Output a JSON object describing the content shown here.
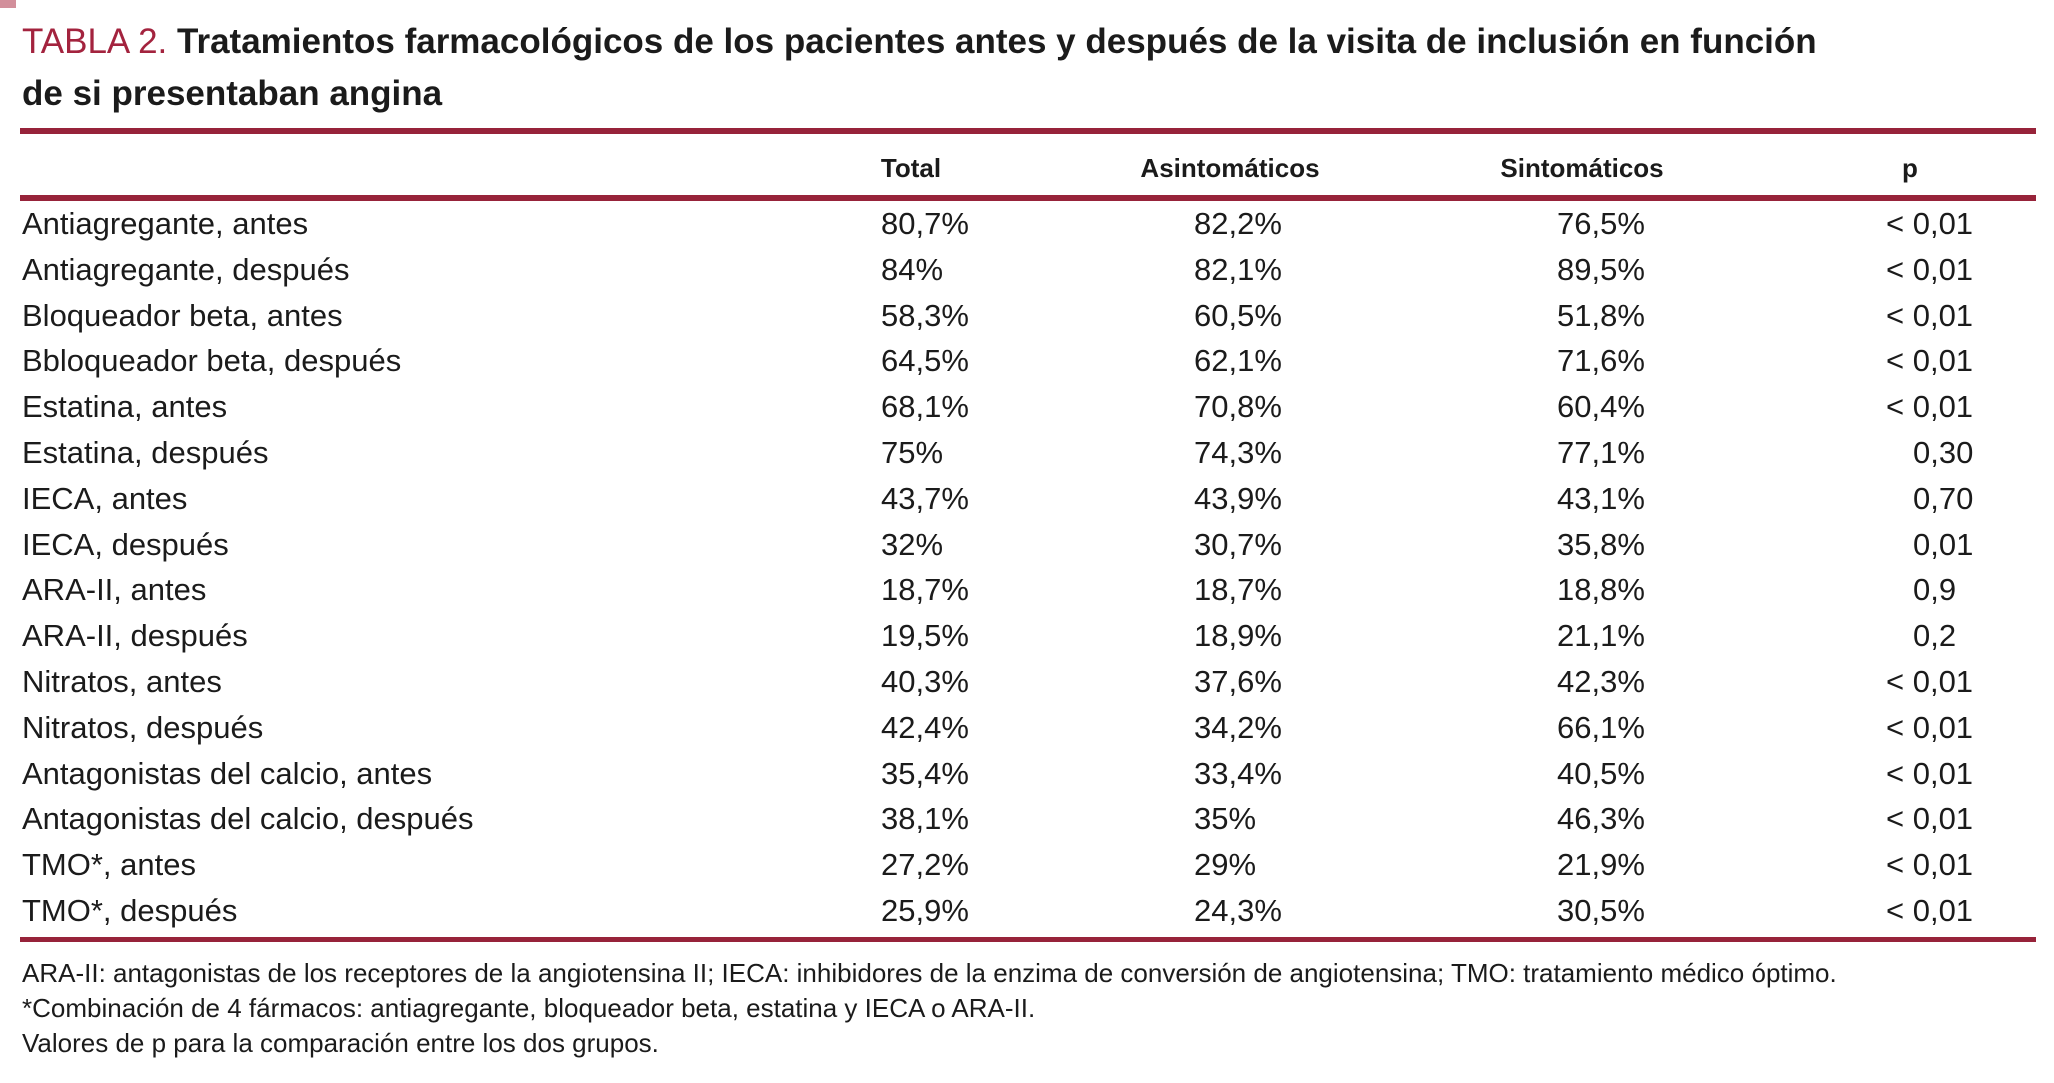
{
  "colors": {
    "accent_rule": "#97233a",
    "title_label": "#a3233e",
    "text": "#1b1b1b",
    "background": "#ffffff"
  },
  "title": {
    "label": "TABLA 2.",
    "line1": "Tratamientos farmacológicos de los pacientes antes y después de la visita de inclusión en función",
    "line2": "de si presentaban angina"
  },
  "table": {
    "headers": [
      "Total",
      "Asintomáticos",
      "Sintomáticos",
      "p"
    ],
    "rows": [
      [
        "Antiagregante, antes",
        "80,7%",
        "82,2%",
        "76,5%",
        "< 0,01"
      ],
      [
        "Antiagregante, después",
        "84%",
        "82,1%",
        "89,5%",
        "< 0,01"
      ],
      [
        "Bloqueador beta, antes",
        "58,3%",
        "60,5%",
        "51,8%",
        "< 0,01"
      ],
      [
        "Bbloqueador beta, después",
        "64,5%",
        "62,1%",
        "71,6%",
        "< 0,01"
      ],
      [
        "Estatina, antes",
        "68,1%",
        "70,8%",
        "60,4%",
        "< 0,01"
      ],
      [
        "Estatina, después",
        "75%",
        "74,3%",
        "77,1%",
        "0,30"
      ],
      [
        "IECA, antes",
        "43,7%",
        "43,9%",
        "43,1%",
        "0,70"
      ],
      [
        "IECA, después",
        "32%",
        "30,7%",
        "35,8%",
        "0,01"
      ],
      [
        "ARA-II, antes",
        "18,7%",
        "18,7%",
        "18,8%",
        "0,9"
      ],
      [
        "ARA-II, después",
        "19,5%",
        "18,9%",
        "21,1%",
        "0,2"
      ],
      [
        "Nitratos, antes",
        "40,3%",
        "37,6%",
        "42,3%",
        "< 0,01"
      ],
      [
        "Nitratos, después",
        "42,4%",
        "34,2%",
        "66,1%",
        "< 0,01"
      ],
      [
        "Antagonistas del calcio, antes",
        "35,4%",
        "33,4%",
        "40,5%",
        "< 0,01"
      ],
      [
        "Antagonistas del calcio, después",
        "38,1%",
        "35%",
        "46,3%",
        "< 0,01"
      ],
      [
        "TMO*, antes",
        "27,2%",
        "29%",
        "21,9%",
        "< 0,01"
      ],
      [
        "TMO*, después",
        "25,9%",
        "24,3%",
        "30,5%",
        "< 0,01"
      ]
    ]
  },
  "footnotes": [
    "ARA-II: antagonistas de los receptores de la angiotensina II; IECA: inhibidores de la enzima de conversión de angiotensina; TMO: tratamiento médico óptimo.",
    "*Combinación de 4 fármacos: antiagregante, bloqueador beta, estatina y IECA o ARA-II.",
    "Valores de p para la comparación entre los dos grupos."
  ]
}
